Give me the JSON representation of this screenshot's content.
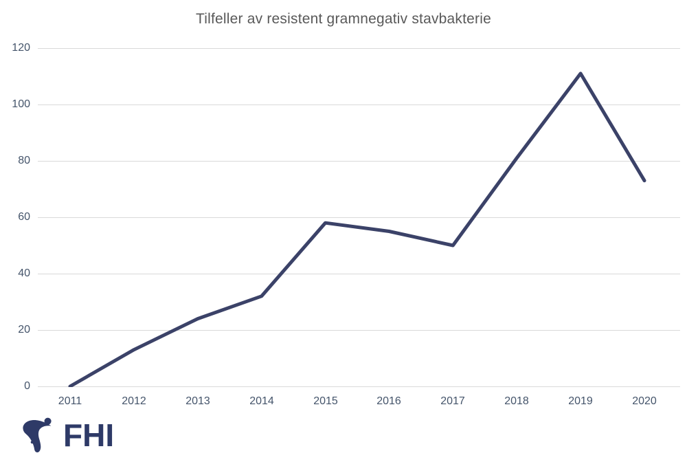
{
  "title": "Tilfeller av resistent gramnegativ stavbakterie",
  "chart_data": {
    "type": "line",
    "title": "Tilfeller av resistent gramnegativ stavbakterie",
    "x": [
      2011,
      2012,
      2013,
      2014,
      2015,
      2016,
      2017,
      2018,
      2019,
      2020
    ],
    "values": [
      0,
      13,
      24,
      32,
      58,
      55,
      50,
      81,
      111,
      73
    ],
    "xlabel": "",
    "ylabel": "",
    "ylim": [
      0,
      120
    ],
    "ytick_step": 20,
    "yticks": [
      "120",
      "100",
      "80",
      "60",
      "40",
      "20",
      "0"
    ],
    "xticks": [
      "2011",
      "2012",
      "2013",
      "2014",
      "2015",
      "2016",
      "2017",
      "2018",
      "2019",
      "2020"
    ],
    "grid": "horizontal",
    "legend": "none",
    "line_color": "#3B4268",
    "gridline_color": "#D9D9D9",
    "axis_label_color": "#44546A",
    "title_color": "#595959"
  },
  "logo": {
    "text": "FHI",
    "color": "#2E3A67",
    "mark": "fhi-figure-mark"
  }
}
